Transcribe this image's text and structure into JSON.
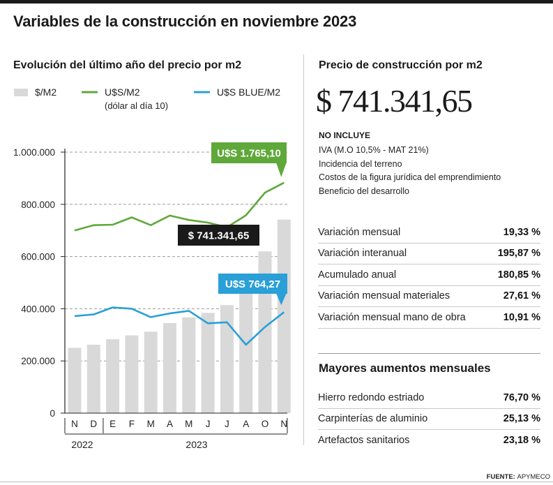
{
  "title": "Variables de la construcción en noviembre 2023",
  "chart_data": {
    "type": "bar",
    "title": "Evolución del último año del precio por m2",
    "categories": [
      "N",
      "D",
      "E",
      "F",
      "M",
      "A",
      "M",
      "J",
      "J",
      "A",
      "O",
      "N"
    ],
    "year_labels": [
      {
        "label": "2022",
        "start": 0,
        "end": 1
      },
      {
        "label": "2023",
        "start": 2,
        "end": 11
      }
    ],
    "ylim": [
      0,
      1000000
    ],
    "yticks": [
      0,
      200000,
      400000,
      600000,
      800000,
      1000000
    ],
    "ytick_labels": [
      "0",
      "200.000",
      "400.000",
      "600.000",
      "800.000",
      "1.000.000"
    ],
    "grid": true,
    "legend": [
      {
        "label": "$/M2",
        "type": "bar",
        "color": "#d9d9d9"
      },
      {
        "label": "U$S/M2",
        "sublabel": "(dólar al día 10)",
        "type": "line",
        "color": "#5fa83a"
      },
      {
        "label": "U$S BLUE/M2",
        "type": "line",
        "color": "#2a9fd8"
      }
    ],
    "series": [
      {
        "name": "$/M2",
        "type": "bar",
        "color": "#d9d9d9",
        "values": [
          250000,
          262000,
          283000,
          298000,
          312000,
          345000,
          367000,
          384000,
          414000,
          470000,
          620000,
          741341.65
        ]
      },
      {
        "name": "U$S/M2",
        "type": "line",
        "color": "#5fa83a",
        "values": [
          700000,
          720000,
          722000,
          750000,
          720000,
          757000,
          740000,
          730000,
          712000,
          758000,
          845000,
          883000
        ]
      },
      {
        "name": "U$S BLUE/M2",
        "type": "line",
        "color": "#2a9fd8",
        "values": [
          372000,
          378000,
          405000,
          400000,
          368000,
          382000,
          392000,
          344000,
          348000,
          262000,
          330000,
          387000
        ]
      }
    ],
    "callouts": [
      {
        "text": "U$S 1.765,10",
        "color": "#5fa83a",
        "series": 1
      },
      {
        "text": "$ 741.341,65",
        "color": "#1a1a1a",
        "series": 0
      },
      {
        "text": "U$S 764,27",
        "color": "#2a9fd8",
        "series": 2
      }
    ]
  },
  "price": {
    "title": "Precio de construcción por m2",
    "value": "$ 741.341,65"
  },
  "excludes": {
    "title": "NO INCLUYE",
    "items": [
      "IVA (M.O 10,5% - MAT 21%)",
      "Incidencia del terreno",
      "Costos de la figura jurídica del emprendimiento",
      "Beneficio del desarrollo"
    ]
  },
  "stats": [
    {
      "label": "Variación mensual",
      "value": "19,33 %"
    },
    {
      "label": "Variación interanual",
      "value": "195,87 %"
    },
    {
      "label": "Acumulado anual",
      "value": "180,85 %"
    },
    {
      "label": "Variación mensual materiales",
      "value": "27,61 %"
    },
    {
      "label": "Variación mensual mano de obra",
      "value": "10,91 %"
    }
  ],
  "increases": {
    "title": "Mayores aumentos mensuales",
    "items": [
      {
        "label": "Hierro redondo estriado",
        "value": "76,70 %"
      },
      {
        "label": "Carpinterías de aluminio",
        "value": "25,13 %"
      },
      {
        "label": "Artefactos sanitarios",
        "value": "23,18 %"
      }
    ]
  },
  "source": {
    "label": "FUENTE:",
    "value": "APYMECO"
  }
}
